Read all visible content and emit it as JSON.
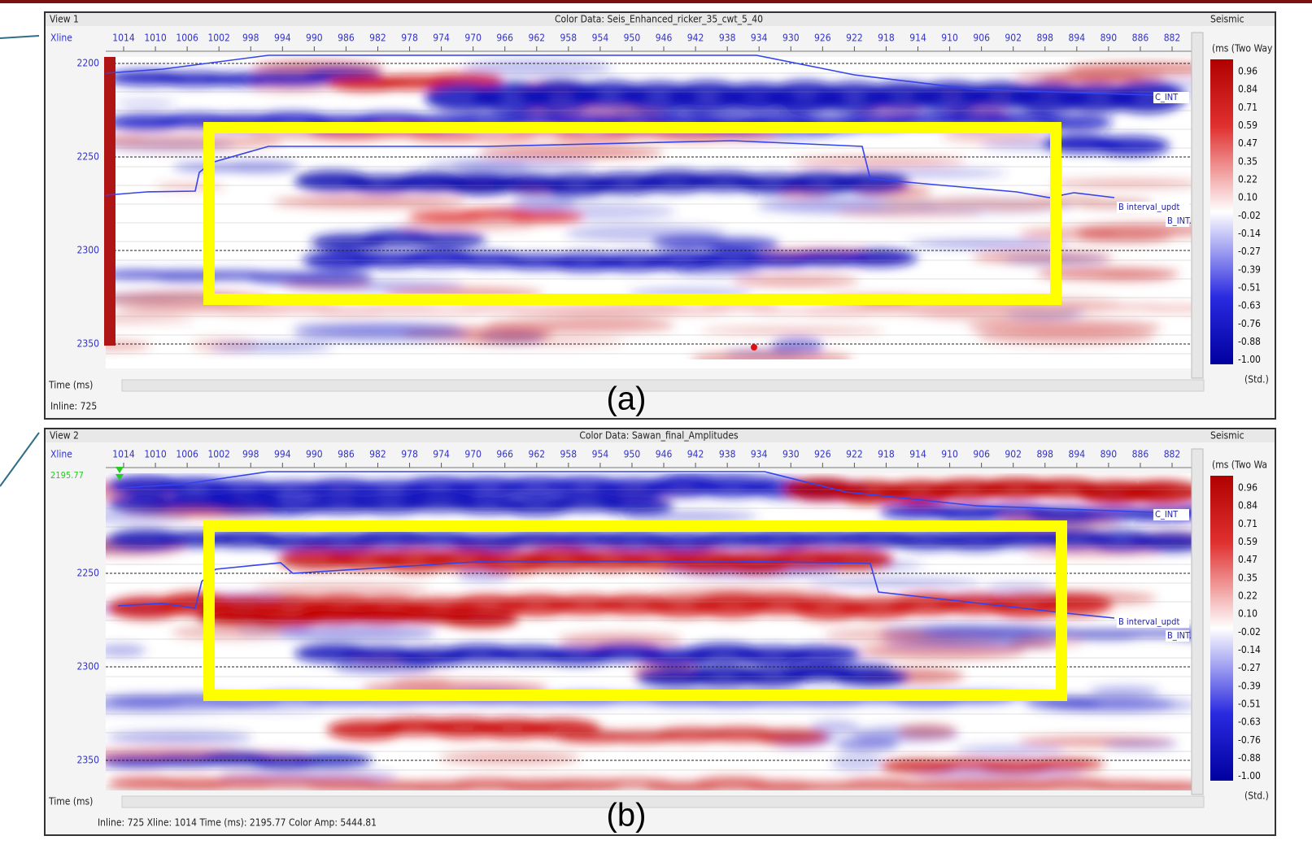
{
  "views": [
    {
      "name": "View 1",
      "color_data": "Color Data: Seis_Enhanced_ricker_35_cwt_5_40",
      "axis_label": "Xline",
      "xlines": [
        1014,
        1010,
        1006,
        1002,
        998,
        994,
        990,
        986,
        982,
        978,
        974,
        970,
        966,
        962,
        958,
        954,
        950,
        946,
        942,
        938,
        934,
        930,
        926,
        922,
        918,
        914,
        910,
        906,
        902,
        898,
        894,
        890,
        886,
        882
      ],
      "times": [
        2200,
        2250,
        2300,
        2350
      ],
      "horizons": [
        "C_INT",
        "B interval_updt",
        "B_INT."
      ],
      "time_label": "Time (ms)",
      "status": "Inline: 725",
      "legend_title": "Seismic",
      "legend_unit": "(ms (Two Way",
      "colorbar": [
        "0.96",
        "0.84",
        "0.71",
        "0.59",
        "0.47",
        "0.35",
        "0.22",
        "0.10",
        "-0.02",
        "-0.14",
        "-0.27",
        "-0.39",
        "-0.51",
        "-0.63",
        "-0.76",
        "-0.88",
        "-1.00"
      ],
      "legend_footer": "(Std.)",
      "panel_label": "(a)"
    },
    {
      "name": "View 2",
      "color_data": "Color Data: Sawan_final_Amplitudes",
      "axis_label": "Xline",
      "xlines": [
        1014,
        1010,
        1006,
        1002,
        998,
        994,
        990,
        986,
        982,
        978,
        974,
        970,
        966,
        962,
        958,
        954,
        950,
        946,
        942,
        938,
        934,
        930,
        926,
        922,
        918,
        914,
        910,
        906,
        902,
        898,
        894,
        890,
        886,
        882
      ],
      "times": [
        2250,
        2300,
        2350
      ],
      "marker": "2195.77",
      "horizons": [
        "C_INT",
        "B interval_updt",
        "B_INT."
      ],
      "time_label": "Time (ms)",
      "status": "Inline: 725  Xline: 1014  Time (ms): 2195.77  Color Amp: 5444.81",
      "legend_title": "Seismic",
      "legend_unit": "(ms (Two Wa",
      "colorbar": [
        "0.96",
        "0.84",
        "0.71",
        "0.59",
        "0.47",
        "0.35",
        "0.22",
        "0.10",
        "-0.02",
        "-0.14",
        "-0.27",
        "-0.39",
        "-0.51",
        "-0.63",
        "-0.76",
        "-0.88",
        "-1.00"
      ],
      "legend_footer": "(Std.)",
      "panel_label": "(b)"
    }
  ]
}
